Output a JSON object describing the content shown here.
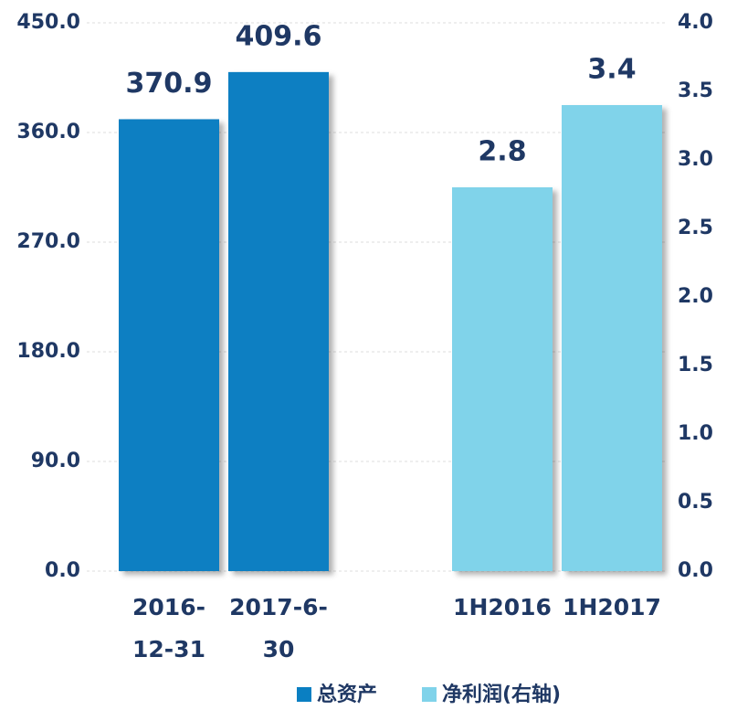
{
  "chart_data": {
    "type": "bar",
    "categories": [
      "2016-12-31",
      "2017-6-30",
      "1H2016",
      "1H2017"
    ],
    "series": [
      {
        "name": "总资产",
        "color": "#0a7fc2",
        "values": [
          370.9,
          409.6,
          null,
          null
        ]
      },
      {
        "name": "净利润(右轴)",
        "color": "#80d3ea",
        "axis": "y2",
        "values": [
          null,
          null,
          2.8,
          3.4
        ]
      }
    ],
    "ylim": [
      0,
      450
    ],
    "yticks": [
      {
        "value": 0,
        "label": "0.0"
      },
      {
        "value": 90,
        "label": "90.0"
      },
      {
        "value": 180,
        "label": "180.0"
      },
      {
        "value": 270,
        "label": "270.0"
      },
      {
        "value": 360,
        "label": "360.0"
      },
      {
        "value": 450,
        "label": "450.0"
      }
    ],
    "y2lim": [
      0,
      4
    ],
    "y2ticks": [
      {
        "value": 0,
        "label": "0.0"
      },
      0.5,
      {
        "value": 1,
        "label": "1.0"
      },
      1.5,
      {
        "value": 2,
        "label": "2.0"
      },
      2.5,
      {
        "value": 3,
        "label": "3.0"
      },
      3.5,
      {
        "value": 4,
        "label": "4.0"
      }
    ],
    "grid": true,
    "legend": "bottom"
  }
}
